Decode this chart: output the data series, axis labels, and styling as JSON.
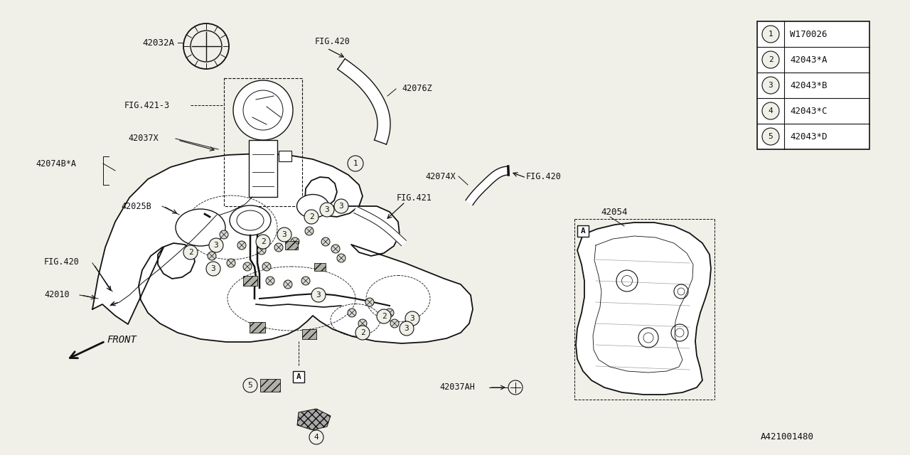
{
  "bg_color": "#f0f0e8",
  "line_color": "#111111",
  "legend_items": [
    {
      "num": "1",
      "code": "W170026"
    },
    {
      "num": "2",
      "code": "42043*A"
    },
    {
      "num": "3",
      "code": "42043*B"
    },
    {
      "num": "4",
      "code": "42043*C"
    },
    {
      "num": "5",
      "code": "42043*D"
    }
  ],
  "footer_id": "A421001480",
  "fig_w": 1280,
  "fig_h": 640
}
